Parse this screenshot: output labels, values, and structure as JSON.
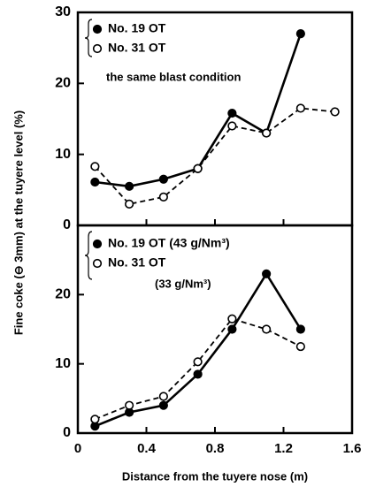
{
  "y_label": "Fine coke (⊖ 3mm) at the tuyere level (%)",
  "x_label": "Distance from the tuyere nose (m)",
  "chart_data": [
    {
      "type": "line",
      "x": [
        0.1,
        0.3,
        0.5,
        0.7,
        0.9,
        1.1,
        1.3,
        1.5
      ],
      "series": [
        {
          "name": "No. 19 OT",
          "color": "#000000",
          "marker": "filled-circle",
          "linestyle": "solid",
          "values": [
            6.1,
            5.5,
            6.5,
            8,
            15.8,
            13,
            27,
            null
          ]
        },
        {
          "name": "No. 31 OT",
          "color": "#000000",
          "marker": "open-circle",
          "linestyle": "dashed",
          "values": [
            8.3,
            3,
            4,
            8,
            14,
            13,
            16.5,
            16
          ]
        }
      ],
      "annotation": "the same blast condition",
      "xlim": [
        0,
        1.6
      ],
      "xticks": [
        0,
        0.4,
        0.8,
        1.2,
        1.6
      ],
      "ylim": [
        0,
        30
      ],
      "yticks": [
        0,
        10,
        20,
        30
      ]
    },
    {
      "type": "line",
      "x": [
        0.1,
        0.3,
        0.5,
        0.7,
        0.9,
        1.1,
        1.3
      ],
      "series": [
        {
          "name": "No. 19 OT (43 g/Nm³)",
          "color": "#000000",
          "marker": "filled-circle",
          "linestyle": "solid",
          "values": [
            1,
            3,
            4,
            8.5,
            15,
            23,
            15
          ]
        },
        {
          "name": "No. 31 OT",
          "color": "#000000",
          "marker": "open-circle",
          "linestyle": "dashed",
          "values": [
            2,
            4,
            5.3,
            10.3,
            16.5,
            15,
            12.5
          ]
        }
      ],
      "annotation": "(33 g/Nm³)",
      "xlim": [
        0,
        1.6
      ],
      "xticks": [
        0,
        0.4,
        0.8,
        1.2,
        1.6
      ],
      "ylim": [
        0,
        30
      ],
      "yticks": [
        0,
        10,
        20
      ]
    }
  ]
}
